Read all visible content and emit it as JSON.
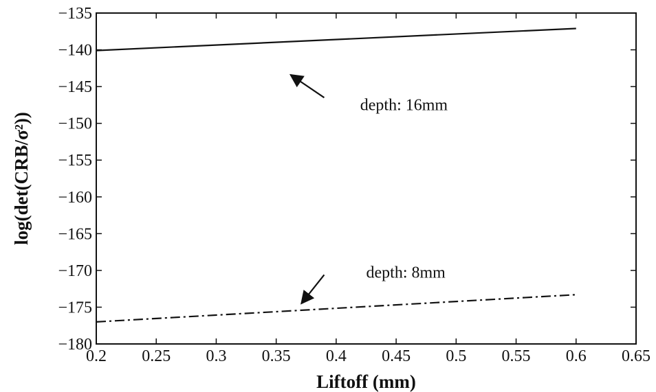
{
  "chart_data": {
    "type": "line",
    "title": "",
    "xlabel": "Liftoff (mm)",
    "ylabel": "log(det(CRB/σ²))",
    "xlim": [
      0.2,
      0.65
    ],
    "ylim": [
      -180,
      -135
    ],
    "xticks": [
      "0.2",
      "0.25",
      "0.3",
      "0.35",
      "0.4",
      "0.45",
      "0.5",
      "0.55",
      "0.6",
      "0.65"
    ],
    "yticks": [
      "−135",
      "−140",
      "−145",
      "−150",
      "−155",
      "−160",
      "−165",
      "−170",
      "−175",
      "−180"
    ],
    "grid": false,
    "legend": "none",
    "series": [
      {
        "x": [
          0.2,
          0.6
        ],
        "y": [
          -140.1,
          -137.1
        ],
        "line_style": "solid",
        "color": "#111111"
      },
      {
        "x": [
          0.2,
          0.6
        ],
        "y": [
          -177.0,
          -173.3
        ],
        "line_style": "dash-dot",
        "color": "#111111"
      }
    ],
    "annotations": [
      {
        "text": "depth: 16mm",
        "x": 0.42,
        "y": -148.2,
        "arrow_from": [
          0.39,
          -146.5
        ],
        "arrow_to": [
          0.362,
          -143.4
        ]
      },
      {
        "text": "depth: 8mm",
        "x": 0.425,
        "y": -171.0,
        "arrow_from": [
          0.39,
          -170.6
        ],
        "arrow_to": [
          0.371,
          -174.5
        ]
      }
    ]
  }
}
